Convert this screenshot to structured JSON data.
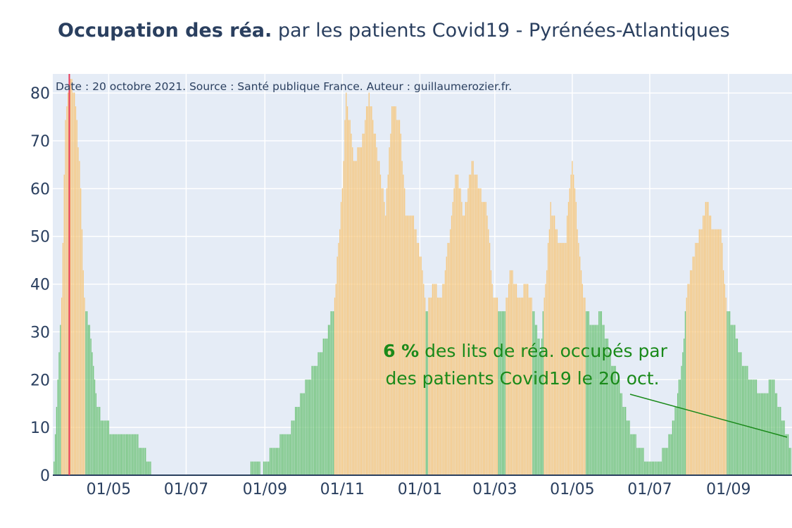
{
  "title": {
    "bold": "Occupation des réa.",
    "rest": " par les patients Covid19 - Pyrénées-Atlantiques"
  },
  "chart_data": {
    "type": "bar",
    "annotation_source": "Date : 20 octobre 2021. Source : Santé publique France. Auteur : guillaumerozier.fr.",
    "callout": {
      "percent": "6  %",
      "line1_rest": " des lits de réa. occupés par",
      "line2": "des patients Covid19 le 20 oct."
    },
    "x_tick_labels": [
      "01/05",
      "01/07",
      "01/09",
      "01/11",
      "01/01",
      "01/03",
      "01/05",
      "01/07",
      "01/09"
    ],
    "x_tick_dates": [
      "2020-05-01",
      "2020-07-01",
      "2020-09-01",
      "2020-11-01",
      "2021-01-01",
      "2021-03-01",
      "2021-05-01",
      "2021-07-01",
      "2021-09-01"
    ],
    "y_ticks": [
      0,
      10,
      20,
      30,
      40,
      50,
      60,
      70,
      80
    ],
    "ylim": [
      0,
      84
    ],
    "xlim": [
      "2020-03-18",
      "2021-10-21"
    ],
    "grid": true,
    "colors": {
      "high": "#f6c880",
      "low": "#72c47c",
      "marker": "#e83a5a",
      "callout": "#1a8a1a",
      "text": "#2a3f5f",
      "plot_bg": "#e5ecf6"
    },
    "vertical_marker_date": "2020-03-31",
    "color_threshold": 37,
    "keypoints": [
      [
        "2020-03-19",
        3
      ],
      [
        "2020-03-22",
        20
      ],
      [
        "2020-03-25",
        37
      ],
      [
        "2020-03-28",
        75
      ],
      [
        "2020-03-31",
        84
      ],
      [
        "2020-04-04",
        80
      ],
      [
        "2020-04-08",
        66
      ],
      [
        "2020-04-12",
        37
      ],
      [
        "2020-04-17",
        29
      ],
      [
        "2020-04-22",
        14
      ],
      [
        "2020-04-28",
        11
      ],
      [
        "2020-05-05",
        9
      ],
      [
        "2020-05-20",
        9
      ],
      [
        "2020-05-28",
        6
      ],
      [
        "2020-06-02",
        3
      ],
      [
        "2020-06-04",
        0
      ],
      [
        "2020-08-20",
        0
      ],
      [
        "2020-08-21",
        3
      ],
      [
        "2020-08-27",
        3
      ],
      [
        "2020-08-29",
        0
      ],
      [
        "2020-09-01",
        3
      ],
      [
        "2020-09-08",
        6
      ],
      [
        "2020-09-20",
        9
      ],
      [
        "2020-09-30",
        17
      ],
      [
        "2020-10-10",
        23
      ],
      [
        "2020-10-20",
        29
      ],
      [
        "2020-10-26",
        37
      ],
      [
        "2020-11-01",
        60
      ],
      [
        "2020-11-04",
        80
      ],
      [
        "2020-11-10",
        66
      ],
      [
        "2020-11-16",
        69
      ],
      [
        "2020-11-22",
        80
      ],
      [
        "2020-11-28",
        69
      ],
      [
        "2020-12-05",
        55
      ],
      [
        "2020-12-10",
        77
      ],
      [
        "2020-12-16",
        75
      ],
      [
        "2020-12-21",
        55
      ],
      [
        "2020-12-27",
        53
      ],
      [
        "2021-01-02",
        46
      ],
      [
        "2021-01-06",
        34
      ],
      [
        "2021-01-12",
        40
      ],
      [
        "2021-01-18",
        37
      ],
      [
        "2021-01-24",
        50
      ],
      [
        "2021-01-30",
        64
      ],
      [
        "2021-02-05",
        54
      ],
      [
        "2021-02-11",
        66
      ],
      [
        "2021-02-17",
        60
      ],
      [
        "2021-02-23",
        55
      ],
      [
        "2021-02-28",
        37
      ],
      [
        "2021-03-08",
        34
      ],
      [
        "2021-03-14",
        43
      ],
      [
        "2021-03-20",
        37
      ],
      [
        "2021-03-26",
        40
      ],
      [
        "2021-04-01",
        34
      ],
      [
        "2021-04-06",
        26
      ],
      [
        "2021-04-10",
        40
      ],
      [
        "2021-04-14",
        57
      ],
      [
        "2021-04-20",
        49
      ],
      [
        "2021-04-26",
        50
      ],
      [
        "2021-05-01",
        66
      ],
      [
        "2021-05-06",
        49
      ],
      [
        "2021-05-10",
        37
      ],
      [
        "2021-05-16",
        31
      ],
      [
        "2021-05-24",
        34
      ],
      [
        "2021-05-30",
        26
      ],
      [
        "2021-06-06",
        20
      ],
      [
        "2021-06-14",
        11
      ],
      [
        "2021-06-22",
        6
      ],
      [
        "2021-06-30",
        3
      ],
      [
        "2021-07-08",
        3
      ],
      [
        "2021-07-14",
        6
      ],
      [
        "2021-07-20",
        11
      ],
      [
        "2021-07-26",
        23
      ],
      [
        "2021-07-30",
        37
      ],
      [
        "2021-08-04",
        46
      ],
      [
        "2021-08-10",
        51
      ],
      [
        "2021-08-15",
        57
      ],
      [
        "2021-08-20",
        51
      ],
      [
        "2021-08-26",
        51
      ],
      [
        "2021-08-31",
        34
      ],
      [
        "2021-09-06",
        31
      ],
      [
        "2021-09-12",
        23
      ],
      [
        "2021-09-20",
        20
      ],
      [
        "2021-09-28",
        17
      ],
      [
        "2021-10-06",
        20
      ],
      [
        "2021-10-14",
        11
      ],
      [
        "2021-10-20",
        6
      ]
    ]
  }
}
